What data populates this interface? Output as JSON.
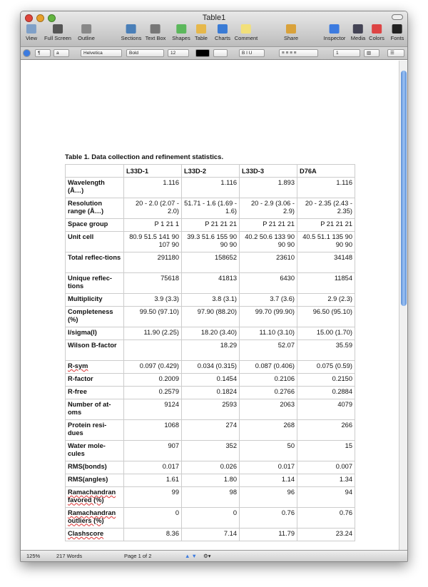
{
  "window": {
    "title": "Table1"
  },
  "toolbar": {
    "items": [
      "View",
      "Full Screen",
      "Outline",
      "Sections",
      "Text Box",
      "Shapes",
      "Table",
      "Charts",
      "Comment",
      "Share",
      "Inspector",
      "Media",
      "Colors",
      "Fonts"
    ]
  },
  "format_bar": {
    "paragraph_style": "¶",
    "char_style": "a",
    "font": "Helvetica",
    "weight": "Bold",
    "size": "12",
    "line_spacing": "1"
  },
  "document": {
    "caption": "Table 1.  Data collection and refinement statistics.",
    "columns": [
      "",
      "L33D-1",
      "L33D-2",
      "L33D-3",
      "D76A"
    ],
    "rows": [
      {
        "label": "Wavelength (Å…)",
        "values": [
          "1.116",
          "1.116",
          "1.893",
          "1.116"
        ]
      },
      {
        "label": "Resolution range (Å…)",
        "values": [
          "20  - 2.0 (2.07 - 2.0)",
          "51.71  - 1.6 (1.69 - 1.6)",
          "20  - 2.9 (3.06 - 2.9)",
          "20  - 2.35 (2.43 - 2.35)"
        ]
      },
      {
        "label": "Space group",
        "values": [
          "P 1 21 1",
          "P 21 21 21",
          "P 21 21 21",
          "P 21 21 21"
        ]
      },
      {
        "label": "Unit cell",
        "values": [
          "80.9 51.5 141 90 107 90",
          "39.3 51.6 155 90 90 90",
          "40.2 50.6 133 90 90 90",
          "40.5 51.1 135 90 90 90"
        ]
      },
      {
        "label": "Total reflec-tions",
        "values": [
          "291180",
          "158652",
          "23610",
          "34148"
        ]
      },
      {
        "label": "Unique reflec-tions",
        "values": [
          "75618",
          "41813",
          "6430",
          "11854"
        ]
      },
      {
        "label": "Multiplicity",
        "values": [
          "3.9 (3.3)",
          "3.8 (3.1)",
          "3.7 (3.6)",
          "2.9 (2.3)"
        ]
      },
      {
        "label": "Completeness (%)",
        "values": [
          "99.50 (97.10)",
          "97.90 (88.20)",
          "99.70 (99.90)",
          "96.50 (95.10)"
        ]
      },
      {
        "label": "I/sigma(I)",
        "values": [
          "11.90 (2.25)",
          "18.20 (3.40)",
          "11.10 (3.10)",
          "15.00 (1.70)"
        ]
      },
      {
        "label": "Wilson B-factor",
        "values": [
          "",
          "18.29",
          "52.07",
          "35.59"
        ]
      },
      {
        "label": "R-sym",
        "values": [
          "0.097 (0.429)",
          "0.034 (0.315)",
          "0.087 (0.406)",
          "0.075 (0.59)"
        ]
      },
      {
        "label": "R-factor",
        "values": [
          "0.2009",
          "0.1454",
          "0.2106",
          "0.2150"
        ]
      },
      {
        "label": "R-free",
        "values": [
          "0.2579",
          "0.1824",
          "0.2766",
          "0.2884"
        ]
      },
      {
        "label": "Number of at-oms",
        "values": [
          "9124",
          "2593",
          "2063",
          "4079"
        ]
      },
      {
        "label": "Protein resi-dues",
        "values": [
          "1068",
          "274",
          "268",
          "266"
        ]
      },
      {
        "label": "Water mole-cules",
        "values": [
          "907",
          "352",
          "50",
          "15"
        ]
      },
      {
        "label": "RMS(bonds)",
        "values": [
          "0.017",
          "0.026",
          "0.017",
          "0.007"
        ]
      },
      {
        "label": "RMS(angles)",
        "values": [
          "1.61",
          "1.80",
          "1.14",
          "1.34"
        ]
      },
      {
        "label": "Ramachandran favored (%)",
        "values": [
          "99",
          "98",
          "96",
          "94"
        ]
      },
      {
        "label": "Ramachandran outliers (%)",
        "values": [
          "0",
          "0",
          "0.76",
          "0.76"
        ]
      },
      {
        "label": "Clashscore",
        "values": [
          "8.36",
          "7.14",
          "11.79",
          "23.24"
        ]
      }
    ]
  },
  "status": {
    "zoom": "125%",
    "words": "217 Words",
    "page": "Page 1 of 2"
  }
}
